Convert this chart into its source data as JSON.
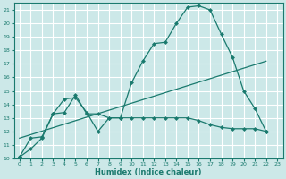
{
  "title": "",
  "xlabel": "Humidex (Indice chaleur)",
  "ylabel": "",
  "bg_color": "#cce8e8",
  "grid_color": "#ffffff",
  "line_color": "#1a7a6e",
  "xlim": [
    -0.5,
    23.5
  ],
  "ylim": [
    10,
    21.5
  ],
  "xticks": [
    0,
    1,
    2,
    3,
    4,
    5,
    6,
    7,
    8,
    9,
    10,
    11,
    12,
    13,
    14,
    15,
    16,
    17,
    18,
    19,
    20,
    21,
    22,
    23
  ],
  "yticks": [
    10,
    11,
    12,
    13,
    14,
    15,
    16,
    17,
    18,
    19,
    20,
    21
  ],
  "line1_x": [
    0,
    1,
    2,
    3,
    4,
    5,
    6,
    7,
    8,
    9,
    10,
    11,
    12,
    13,
    14,
    15,
    16,
    17,
    18,
    19,
    20,
    21,
    22
  ],
  "line1_y": [
    10.1,
    11.5,
    11.6,
    13.3,
    14.4,
    14.5,
    13.4,
    12.0,
    13.0,
    13.0,
    15.6,
    17.2,
    18.5,
    18.6,
    20.0,
    21.2,
    21.3,
    21.0,
    19.2,
    17.5,
    15.0,
    13.7,
    12.0
  ],
  "line2_x": [
    0,
    1,
    2,
    3,
    4,
    5,
    6,
    7,
    8,
    9,
    10,
    11,
    12,
    13,
    14,
    15,
    16,
    17,
    18,
    19,
    20,
    21,
    22
  ],
  "line2_y": [
    10.1,
    10.7,
    11.5,
    13.3,
    13.4,
    14.7,
    13.3,
    13.3,
    13.0,
    13.0,
    13.0,
    13.0,
    13.0,
    13.0,
    13.0,
    13.0,
    12.8,
    12.5,
    12.3,
    12.2,
    12.2,
    12.2,
    12.0
  ],
  "line3_x": [
    0,
    22
  ],
  "line3_y": [
    11.5,
    17.2
  ],
  "marker": "D",
  "markersize": 2.5
}
